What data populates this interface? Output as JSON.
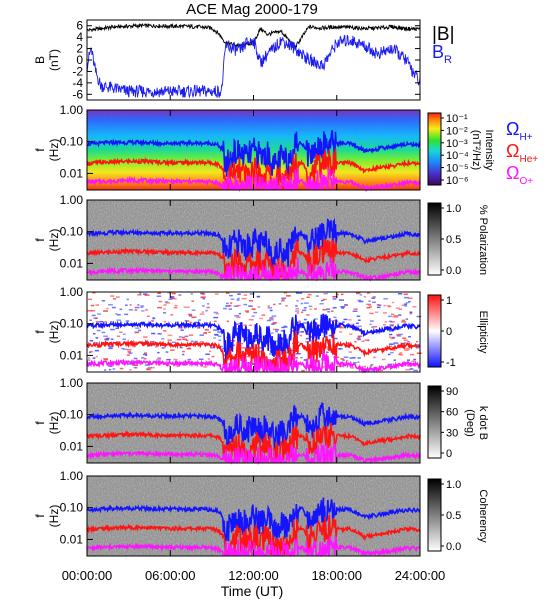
{
  "title": "ACE Mag 2000-179",
  "time_axis": {
    "label": "Time (UT)",
    "tick_labels": [
      "00:00:00",
      "06:00:00",
      "12:00:00",
      "18:00:00",
      "24:00:00"
    ],
    "range_hours": [
      0,
      24
    ]
  },
  "colors": {
    "B_magnitude": "#000000",
    "B_R": "#1c1cf0",
    "omega_H": "#1414ff",
    "omega_He": "#ff1414",
    "omega_O": "#ff14ff"
  },
  "chart_data": [
    {
      "type": "line",
      "panel": "magnetic-field",
      "ylabel": "B",
      "yunit": "(nT)",
      "ylim": [
        -7,
        7
      ],
      "y_tick_labels": [
        "6",
        "4",
        "2",
        "0",
        "-2",
        "-4",
        "-6"
      ],
      "series": [
        {
          "name": "|B|",
          "x": [
            0,
            1,
            2,
            3,
            4,
            5,
            6,
            7,
            8,
            9,
            9.5,
            10,
            11,
            12,
            12.5,
            13,
            14,
            15,
            16,
            17,
            18,
            19,
            20,
            21,
            22,
            23,
            24
          ],
          "values": [
            5.2,
            5.5,
            5.8,
            5.9,
            6.0,
            6.0,
            5.9,
            5.9,
            5.8,
            5.6,
            4.6,
            3.0,
            2.5,
            3.0,
            5.5,
            4.5,
            5.0,
            2.2,
            5.8,
            5.6,
            5.8,
            5.7,
            5.5,
            5.6,
            5.8,
            5.5,
            5.4
          ]
        },
        {
          "name": "B_R",
          "x": [
            0,
            0.3,
            0.6,
            1,
            2,
            3,
            4,
            5,
            6,
            7,
            8,
            9,
            9.7,
            10,
            10.5,
            11,
            11.5,
            12,
            12.5,
            13,
            13.5,
            14,
            15,
            16,
            17,
            18,
            19,
            20,
            21,
            22,
            23,
            24
          ],
          "values": [
            -1,
            2,
            -2,
            -4.5,
            -5,
            -5.5,
            -5.5,
            -5.5,
            -5.5,
            -5.5,
            -5.5,
            -5.5,
            -5.5,
            2.5,
            2,
            1.5,
            3,
            3.5,
            -0.5,
            1,
            2,
            3.5,
            2,
            0,
            -1,
            3,
            3.5,
            2.5,
            1,
            2,
            0,
            -4
          ]
        }
      ],
      "legend": [
        "|B|",
        "B_R"
      ]
    },
    {
      "type": "heatmap",
      "panel": "power-spectrum",
      "ylabel": "f",
      "yunit": "(Hz)",
      "y_scale": "log",
      "ylim": [
        0.003,
        1
      ],
      "y_tick_labels": [
        "1.00",
        "0.10",
        "0.01"
      ],
      "colorbar": {
        "label": "Intensity",
        "unit": "(nT²/Hz)",
        "tick_labels": [
          "10⁻¹",
          "10⁻²",
          "10⁻³",
          "10⁻⁴",
          "10⁻⁵",
          "10⁻⁶"
        ],
        "scale": "log",
        "range": [
          1e-06,
          0.3
        ]
      },
      "legend": [
        "Ω_H+",
        "Ω_He+",
        "Ω_O+"
      ]
    },
    {
      "type": "heatmap",
      "panel": "polarization",
      "ylabel": "f",
      "yunit": "(Hz)",
      "y_scale": "log",
      "ylim": [
        0.003,
        1
      ],
      "y_tick_labels": [
        "1.00",
        "0.10",
        "0.01"
      ],
      "colorbar": {
        "label": "% Polarization",
        "tick_labels": [
          "1.0",
          "0.5",
          "0.0"
        ],
        "range": [
          0,
          1
        ]
      }
    },
    {
      "type": "heatmap",
      "panel": "ellipticity",
      "ylabel": "f",
      "yunit": "(Hz)",
      "y_scale": "log",
      "ylim": [
        0.003,
        1
      ],
      "y_tick_labels": [
        "1.00",
        "0.10",
        "0.01"
      ],
      "colorbar": {
        "label": "Ellipticity",
        "tick_labels": [
          "1",
          "0",
          "-1"
        ],
        "range": [
          -1,
          1
        ]
      }
    },
    {
      "type": "heatmap",
      "panel": "k-dot-b",
      "ylabel": "f",
      "yunit": "(Hz)",
      "y_scale": "log",
      "ylim": [
        0.003,
        1
      ],
      "y_tick_labels": [
        "1.00",
        "0.10",
        "0.01"
      ],
      "colorbar": {
        "label": "k dot B",
        "unit": "(Deg)",
        "tick_labels": [
          "90",
          "60",
          "30",
          "0"
        ],
        "range": [
          0,
          90
        ]
      }
    },
    {
      "type": "heatmap",
      "panel": "coherency",
      "ylabel": "f",
      "yunit": "(Hz)",
      "y_scale": "log",
      "ylim": [
        0.003,
        1
      ],
      "y_tick_labels": [
        "1.00",
        "0.10",
        "0.01"
      ],
      "colorbar": {
        "label": "Coherency",
        "tick_labels": [
          "1.0",
          "0.5",
          "0.0"
        ],
        "range": [
          0,
          1
        ]
      }
    }
  ],
  "gyrofrequency_lines": {
    "x": [
      0,
      1,
      2,
      3,
      4,
      5,
      6,
      7,
      8,
      9,
      9.5,
      9.8,
      10,
      10.5,
      11,
      11.5,
      12,
      12.5,
      13,
      13.5,
      14,
      14.5,
      15,
      15.5,
      16,
      17,
      18,
      19,
      20,
      21,
      22,
      23,
      24
    ],
    "omega_H": [
      0.085,
      0.09,
      0.095,
      0.095,
      0.095,
      0.09,
      0.09,
      0.09,
      0.09,
      0.088,
      0.075,
      0.05,
      0.012,
      0.04,
      0.045,
      0.03,
      0.05,
      0.035,
      0.04,
      0.015,
      0.03,
      0.02,
      0.085,
      0.09,
      0.035,
      0.085,
      0.09,
      0.085,
      0.05,
      0.06,
      0.07,
      0.085,
      0.08
    ],
    "omega_He": [
      0.021,
      0.022,
      0.023,
      0.024,
      0.024,
      0.023,
      0.022,
      0.022,
      0.022,
      0.022,
      0.019,
      0.013,
      0.004,
      0.01,
      0.011,
      0.008,
      0.012,
      0.009,
      0.01,
      0.004,
      0.008,
      0.005,
      0.021,
      0.022,
      0.009,
      0.021,
      0.022,
      0.021,
      0.012,
      0.015,
      0.017,
      0.021,
      0.02
    ],
    "omega_O": [
      0.0053,
      0.0056,
      0.0058,
      0.006,
      0.006,
      0.0058,
      0.0056,
      0.0056,
      0.0056,
      0.0055,
      0.0048,
      0.0035,
      0.0033,
      0.0034,
      0.0035,
      0.0033,
      0.0035,
      0.0033,
      0.0034,
      0.0033,
      0.0034,
      0.0033,
      0.0053,
      0.0056,
      0.0034,
      0.0053,
      0.0056,
      0.0053,
      0.0035,
      0.0038,
      0.0043,
      0.0053,
      0.005
    ]
  }
}
